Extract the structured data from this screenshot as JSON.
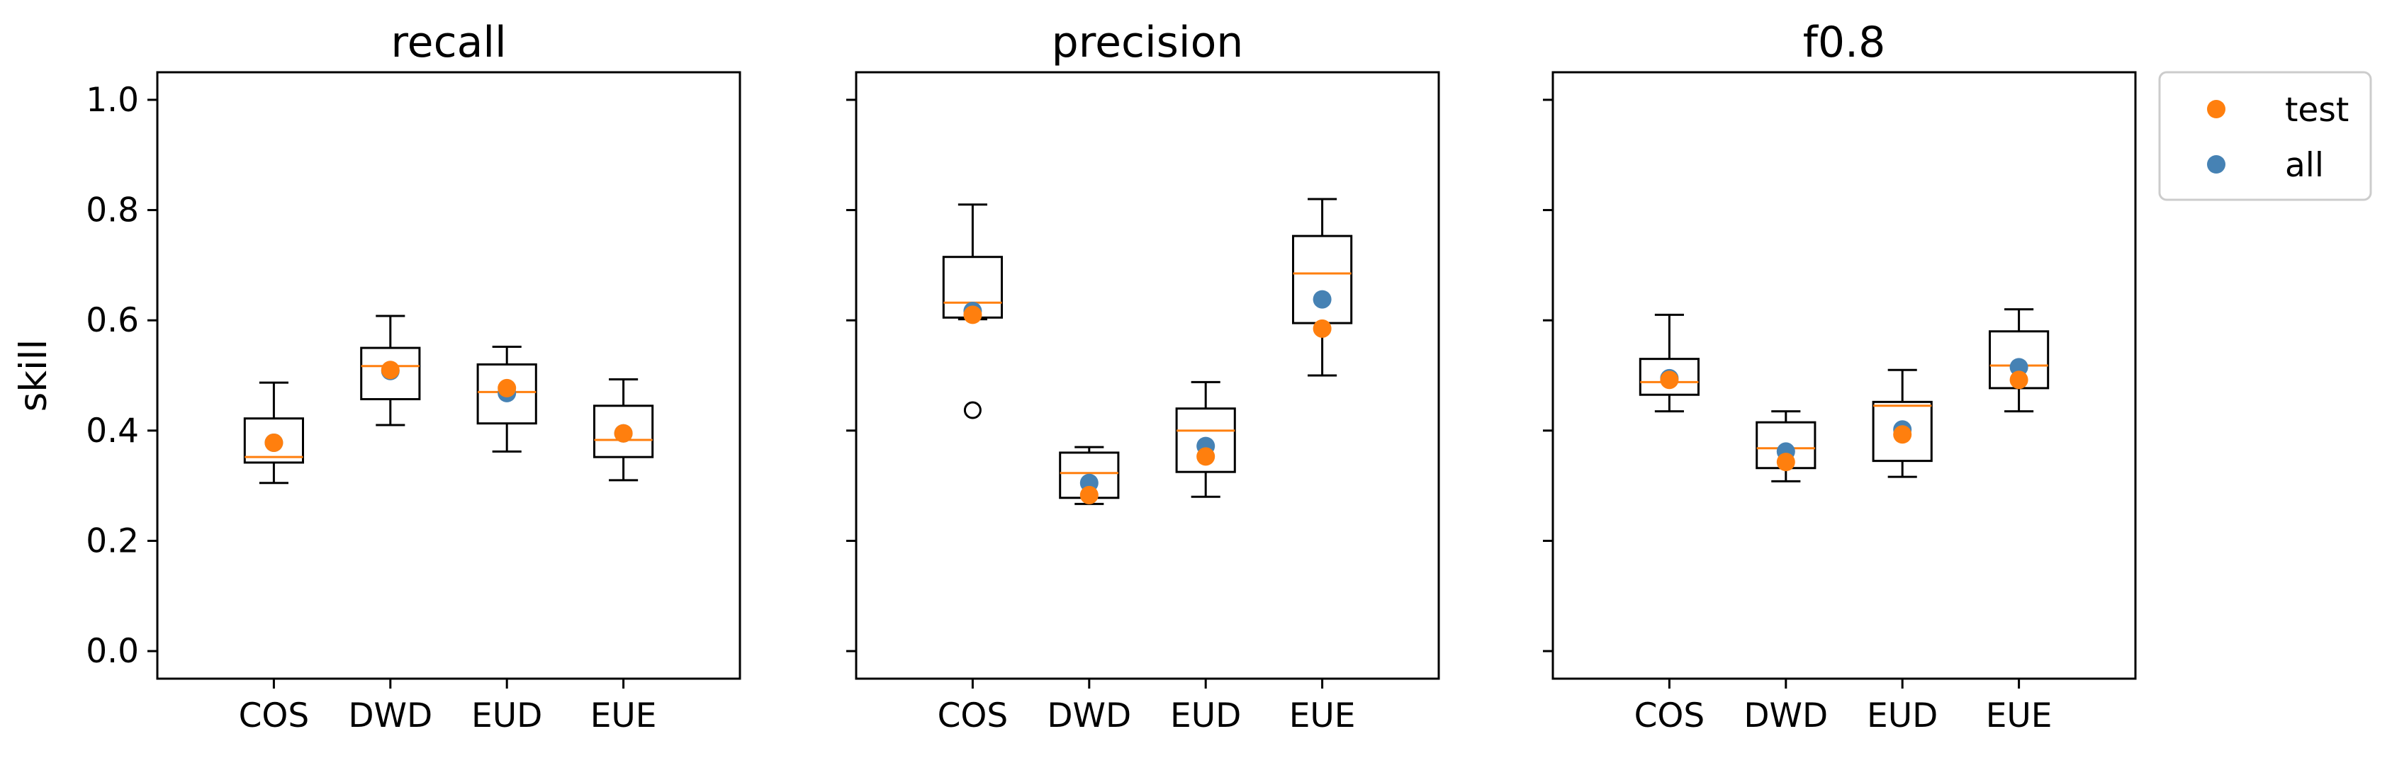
{
  "colors": {
    "median": "#ff7f0e",
    "test": "#ff7f0e",
    "all": "#4682b4",
    "box": "#000000"
  },
  "legend": {
    "placement": "outside-right-top",
    "entries": [
      {
        "label": "test",
        "color": "#ff7f0e"
      },
      {
        "label": "all",
        "color": "#4682b4"
      }
    ]
  },
  "chart_data": [
    {
      "type": "box",
      "title": "recall",
      "xlabel": "",
      "ylabel": "skill",
      "ylim": [
        -0.05,
        1.05
      ],
      "yticks": [
        "0.0",
        "0.2",
        "0.4",
        "0.6",
        "0.8",
        "1.0"
      ],
      "show_ytick_labels": true,
      "categories": [
        "COS",
        "DWD",
        "EUD",
        "EUE"
      ],
      "boxes": [
        {
          "whislo": 0.305,
          "q1": 0.342,
          "med": 0.352,
          "q3": 0.422,
          "whishi": 0.487,
          "fliers": []
        },
        {
          "whislo": 0.41,
          "q1": 0.457,
          "med": 0.517,
          "q3": 0.55,
          "whishi": 0.608,
          "fliers": []
        },
        {
          "whislo": 0.362,
          "q1": 0.413,
          "med": 0.47,
          "q3": 0.52,
          "whishi": 0.552,
          "fliers": []
        },
        {
          "whislo": 0.31,
          "q1": 0.352,
          "med": 0.383,
          "q3": 0.445,
          "whishi": 0.493,
          "fliers": []
        }
      ],
      "series": [
        {
          "name": "all",
          "values": [
            0.378,
            0.508,
            0.468,
            0.395
          ]
        },
        {
          "name": "test",
          "values": [
            0.378,
            0.51,
            0.477,
            0.395
          ]
        }
      ]
    },
    {
      "type": "box",
      "title": "precision",
      "xlabel": "",
      "ylabel": "",
      "ylim": [
        -0.05,
        1.05
      ],
      "yticks": [
        "0.0",
        "0.2",
        "0.4",
        "0.6",
        "0.8",
        "1.0"
      ],
      "show_ytick_labels": false,
      "categories": [
        "COS",
        "DWD",
        "EUD",
        "EUE"
      ],
      "boxes": [
        {
          "whislo": 0.602,
          "q1": 0.605,
          "med": 0.632,
          "q3": 0.715,
          "whishi": 0.81,
          "fliers": [
            0.437
          ]
        },
        {
          "whislo": 0.267,
          "q1": 0.278,
          "med": 0.323,
          "q3": 0.36,
          "whishi": 0.37,
          "fliers": []
        },
        {
          "whislo": 0.28,
          "q1": 0.325,
          "med": 0.4,
          "q3": 0.44,
          "whishi": 0.488,
          "fliers": []
        },
        {
          "whislo": 0.5,
          "q1": 0.595,
          "med": 0.685,
          "q3": 0.753,
          "whishi": 0.82,
          "fliers": []
        }
      ],
      "series": [
        {
          "name": "all",
          "values": [
            0.617,
            0.305,
            0.372,
            0.638
          ]
        },
        {
          "name": "test",
          "values": [
            0.61,
            0.283,
            0.353,
            0.585
          ]
        }
      ]
    },
    {
      "type": "box",
      "title": "f0.8",
      "xlabel": "",
      "ylabel": "",
      "ylim": [
        -0.05,
        1.05
      ],
      "yticks": [
        "0.0",
        "0.2",
        "0.4",
        "0.6",
        "0.8",
        "1.0"
      ],
      "show_ytick_labels": false,
      "categories": [
        "COS",
        "DWD",
        "EUD",
        "EUE"
      ],
      "boxes": [
        {
          "whislo": 0.435,
          "q1": 0.465,
          "med": 0.488,
          "q3": 0.53,
          "whishi": 0.61,
          "fliers": []
        },
        {
          "whislo": 0.308,
          "q1": 0.332,
          "med": 0.368,
          "q3": 0.415,
          "whishi": 0.435,
          "fliers": []
        },
        {
          "whislo": 0.316,
          "q1": 0.345,
          "med": 0.445,
          "q3": 0.452,
          "whishi": 0.51,
          "fliers": []
        },
        {
          "whislo": 0.435,
          "q1": 0.477,
          "med": 0.518,
          "q3": 0.58,
          "whishi": 0.62,
          "fliers": []
        }
      ],
      "series": [
        {
          "name": "all",
          "values": [
            0.495,
            0.362,
            0.402,
            0.515
          ]
        },
        {
          "name": "test",
          "values": [
            0.492,
            0.343,
            0.393,
            0.492
          ]
        }
      ]
    }
  ]
}
